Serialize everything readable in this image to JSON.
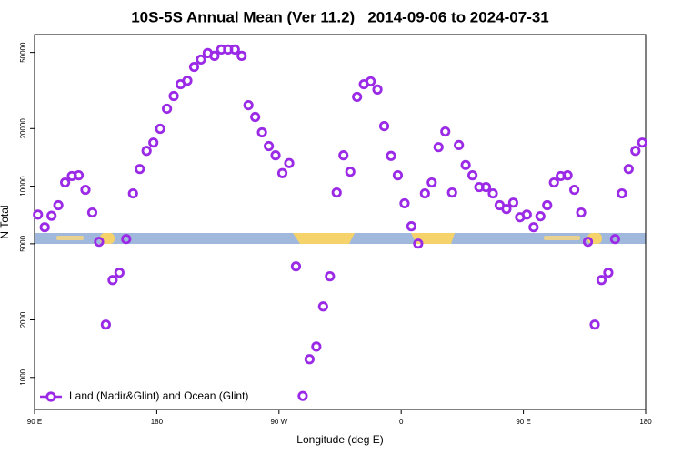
{
  "chart_data": {
    "type": "scatter",
    "title": "10S-5S Annual Mean (Ver 11.2)   2014-09-06 to 2024-07-31",
    "x_label": "Longitude (deg E)",
    "y_label": "N Total",
    "y_log": true,
    "legend": "bottom-left",
    "xlim": [
      90,
      540
    ],
    "ylim": [
      680,
      62000
    ],
    "xticks": [
      {
        "value": 90,
        "label": "90 E"
      },
      180,
      {
        "value": 270,
        "label": "90 W"
      },
      {
        "value": 360,
        "label": "0"
      },
      {
        "value": 450,
        "label": "90 E"
      },
      {
        "value": 540,
        "label": "180"
      }
    ],
    "yticks": [
      1000,
      2000,
      5000,
      10000,
      20000,
      50000
    ],
    "x": [
      92.5,
      97.5,
      102.5,
      107.5,
      112.5,
      117.5,
      122.5,
      127.5,
      132.5,
      137.5,
      142.5,
      147.5,
      152.5,
      157.5,
      162.5,
      167.5,
      172.5,
      177.5,
      182.5,
      187.5,
      192.5,
      197.5,
      202.5,
      207.5,
      212.5,
      217.5,
      222.5,
      227.5,
      232.5,
      237.5,
      242.5,
      247.5,
      252.5,
      257.5,
      262.5,
      267.5,
      272.5,
      277.5,
      282.5,
      287.5,
      292.5,
      297.5,
      302.5,
      307.5,
      312.5,
      317.5,
      322.5,
      327.5,
      332.5,
      337.5,
      342.5,
      347.5,
      352.5,
      357.5,
      362.5,
      367.5,
      372.5,
      377.5,
      382.5,
      387.5,
      392.5,
      397.5,
      402.5,
      407.5,
      412.5,
      417.5,
      422.5,
      427.5,
      432.5,
      437.5,
      442.5,
      447.5,
      452.5,
      457.5,
      462.5,
      467.5,
      472.5,
      477.5,
      482.5,
      487.5,
      492.5,
      497.5,
      502.5,
      507.5,
      512.5,
      517.5,
      522.5,
      527.5,
      532.5,
      537.5
    ],
    "series": [
      {
        "name": "Land (Nadir&Glint) and Ocean (Glint)",
        "color": "#9b2ae6",
        "values": [
          7100,
          6100,
          7000,
          7950,
          10450,
          11300,
          11400,
          9570,
          7280,
          5120,
          1890,
          3230,
          3530,
          5290,
          9160,
          12300,
          15300,
          16900,
          19950,
          25400,
          29600,
          34100,
          35600,
          42000,
          45900,
          49600,
          48000,
          51800,
          51800,
          51800,
          48000,
          26500,
          23000,
          19100,
          16200,
          14500,
          11700,
          13200,
          3810,
          800,
          1245,
          1450,
          2350,
          3380,
          9260,
          14500,
          11900,
          29300,
          34100,
          35300,
          32000,
          20600,
          14400,
          11400,
          8130,
          6170,
          5010,
          9160,
          10450,
          16000,
          19300,
          9260,
          16400,
          12900,
          11400,
          9890,
          9890,
          9160,
          7950,
          7600,
          8200,
          6880,
          7100,
          6100,
          6960,
          7950,
          10450,
          11300,
          11400,
          9570,
          7280,
          5120,
          1890,
          3230,
          3530,
          5290,
          9160,
          12300,
          15300,
          16900
        ]
      }
    ]
  }
}
